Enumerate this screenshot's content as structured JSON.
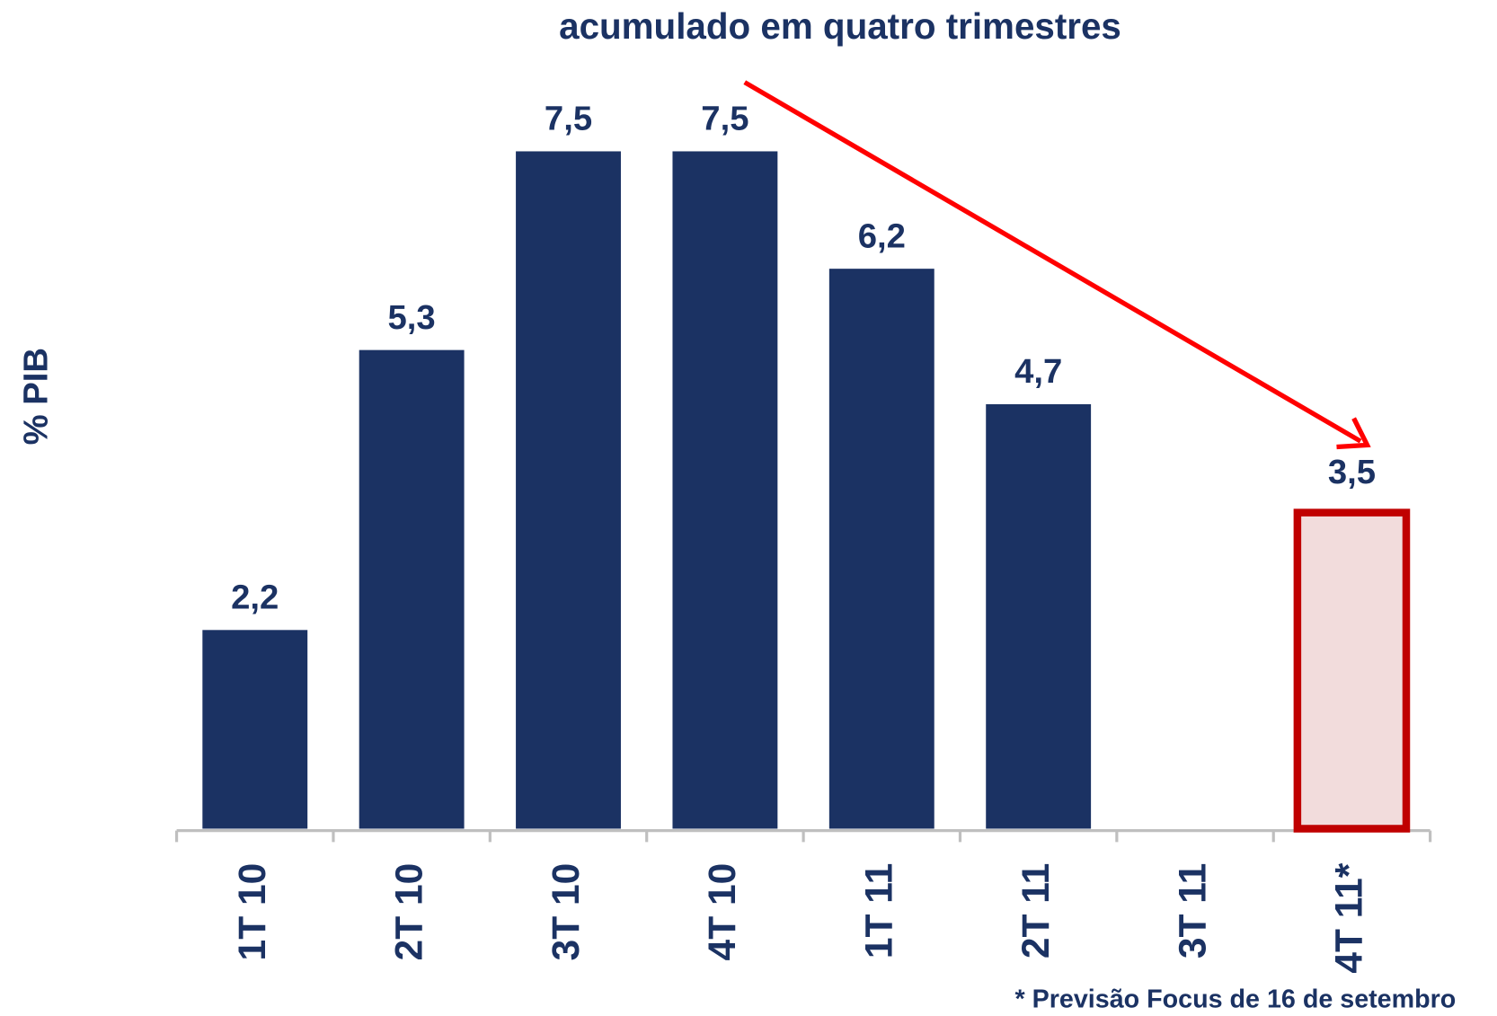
{
  "chart_data": {
    "type": "bar",
    "title": "acumulado em quatro trimestres",
    "ylabel": "% PIB",
    "footnote": "* Previsão Focus de 16 de setembro",
    "categories": [
      "1T 10",
      "2T 10",
      "3T 10",
      "4T 10",
      "1T 11",
      "2T 11",
      "3T 11",
      "4T 11*"
    ],
    "values": [
      2.2,
      5.3,
      7.5,
      7.5,
      6.2,
      4.7,
      null,
      3.5
    ],
    "value_labels": [
      "2,2",
      "5,3",
      "7,5",
      "7,5",
      "6,2",
      "4,7",
      null,
      "3,5"
    ],
    "colors": [
      "#1b3263",
      "#1b3263",
      "#1b3263",
      "#1b3263",
      "#1b3263",
      "#1b3263",
      null,
      "#f2dcdc"
    ],
    "edgecolors": [
      null,
      null,
      null,
      null,
      null,
      null,
      null,
      "#c00000"
    ],
    "ylim": [
      0,
      8
    ]
  }
}
